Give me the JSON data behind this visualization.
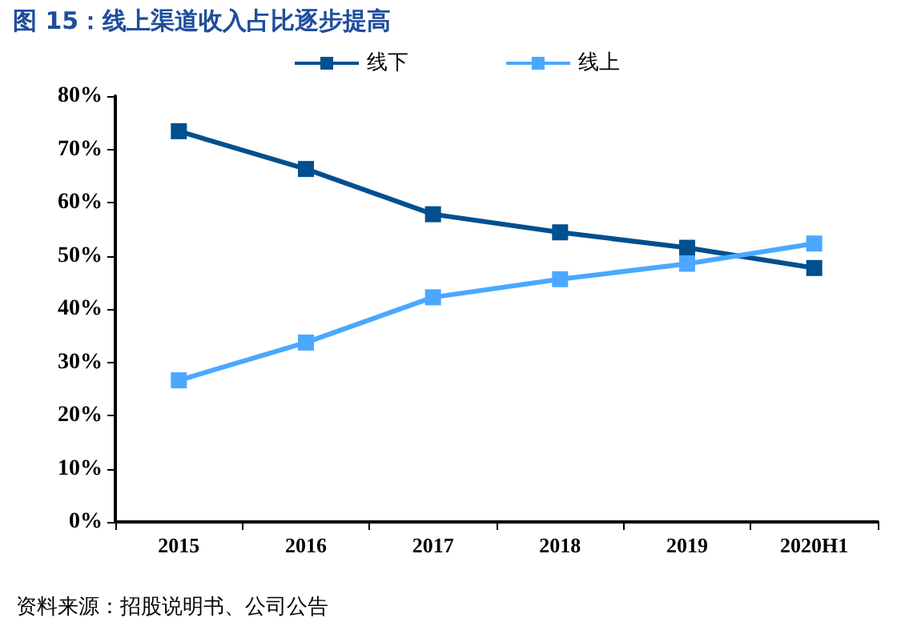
{
  "chart_data": {
    "type": "line",
    "title": "图 15：线上渠道收入占比逐步提高",
    "categories": [
      "2015",
      "2016",
      "2017",
      "2018",
      "2019",
      "2020H1"
    ],
    "series": [
      {
        "name": "线下",
        "color": "#004f8f",
        "values": [
          73.4,
          66.3,
          57.8,
          54.4,
          51.5,
          47.7
        ]
      },
      {
        "name": "线上",
        "color": "#4aa8ff",
        "values": [
          26.6,
          33.7,
          42.2,
          45.6,
          48.5,
          52.3
        ]
      }
    ],
    "ylim": [
      0,
      80
    ],
    "yticks": [
      {
        "value": 0,
        "label": "0%"
      },
      {
        "value": 10,
        "label": "10%"
      },
      {
        "value": 20,
        "label": "20%"
      },
      {
        "value": 30,
        "label": "30%"
      },
      {
        "value": 40,
        "label": "40%"
      },
      {
        "value": 50,
        "label": "50%"
      },
      {
        "value": 60,
        "label": "60%"
      },
      {
        "value": 70,
        "label": "70%"
      },
      {
        "value": 80,
        "label": "80%"
      }
    ],
    "grid": false,
    "legend": "top",
    "marker": "square",
    "line_style": "solid",
    "annotations": [
      "资料来源：招股说明书、公司公告"
    ]
  }
}
